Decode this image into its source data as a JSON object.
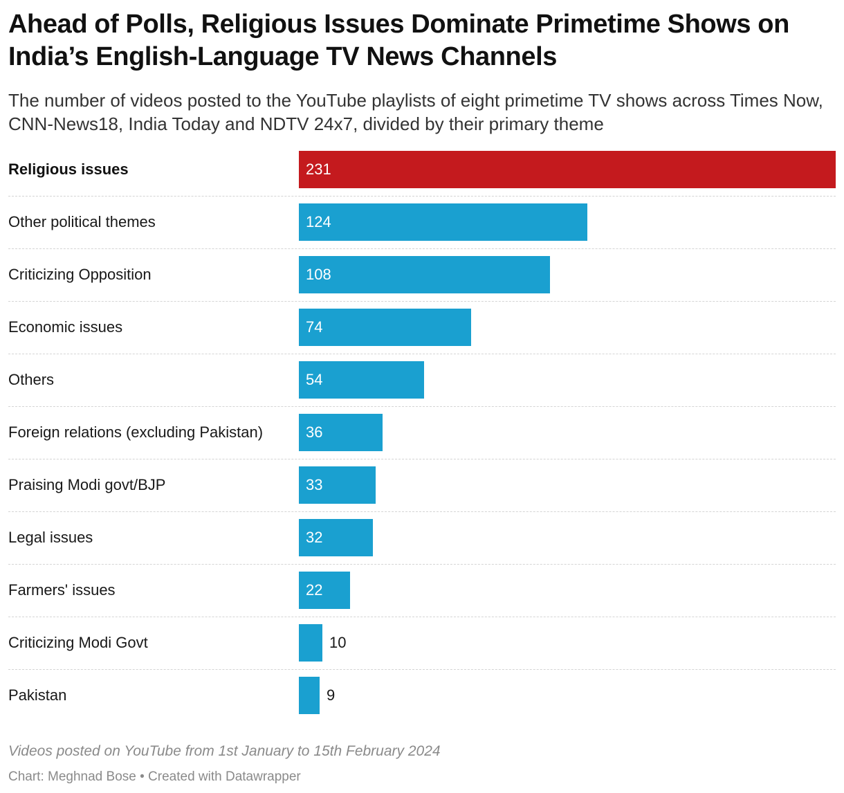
{
  "chart_data": {
    "type": "bar",
    "orientation": "horizontal",
    "title": "Ahead of Polls, Religious Issues Dominate Primetime Shows on India’s English-Language TV News Channels",
    "subtitle": "The number of videos posted to the YouTube playlists of eight primetime TV shows across Times Now, CNN-News18, India Today and NDTV 24x7, divided by their primary theme",
    "categories": [
      "Religious issues",
      "Other political themes",
      "Criticizing Opposition",
      "Economic issues",
      "Others",
      "Foreign relations (excluding Pakistan)",
      "Praising Modi govt/BJP",
      "Legal issues",
      "Farmers' issues",
      "Criticizing Modi Govt",
      "Pakistan"
    ],
    "values": [
      231,
      124,
      108,
      74,
      54,
      36,
      33,
      32,
      22,
      10,
      9
    ],
    "value_labels": [
      "231",
      "124",
      "108",
      "74",
      "54",
      "36",
      "33",
      "32",
      "22",
      "10",
      "9"
    ],
    "highlight_category": "Religious issues",
    "xlim": [
      0,
      231
    ],
    "grid": false,
    "legend": "none",
    "colors": {
      "highlight": "#c41a1e",
      "default": "#1aa0d0"
    },
    "notes": "Videos posted on YouTube from 1st January to 15th February 2024",
    "byline": "Chart: Meghnad Bose • Created with Datawrapper"
  }
}
